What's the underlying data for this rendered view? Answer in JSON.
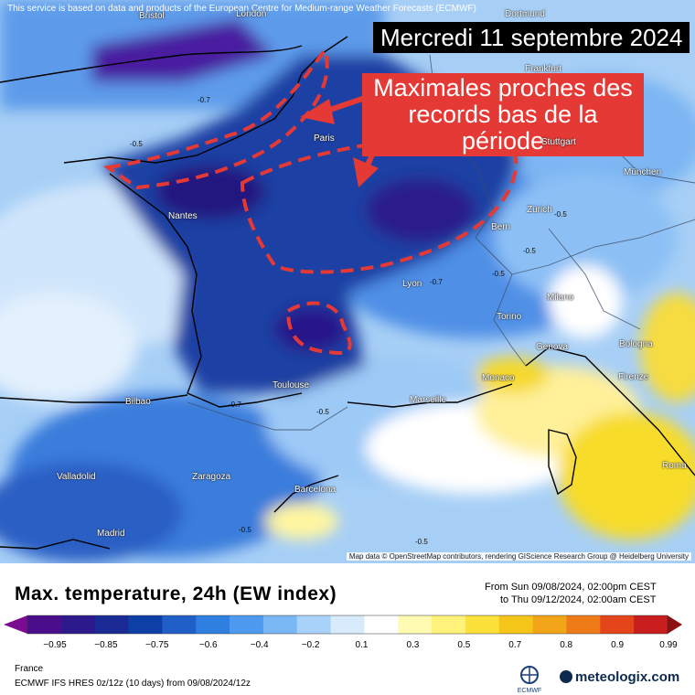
{
  "header_note": "This service is based on data and products of the European Centre for Medium-range Weather Forecasts (ECMWF)",
  "date_label": "Mercredi 11 septembre 2024",
  "annotation": "Maximales proches des records bas de la période",
  "attribution": "Map data © OpenStreetMap contributors, rendering GIScience Research Group @ Heidelberg University",
  "cities": [
    {
      "name": "Bristol"
    },
    {
      "name": "London"
    },
    {
      "name": "Dortmund"
    },
    {
      "name": "Frankfurt"
    },
    {
      "name": "Paris"
    },
    {
      "name": "Stuttgart"
    },
    {
      "name": "München"
    },
    {
      "name": "Nantes"
    },
    {
      "name": "Zürich"
    },
    {
      "name": "Bern"
    },
    {
      "name": "Lyon"
    },
    {
      "name": "Milano"
    },
    {
      "name": "Torino"
    },
    {
      "name": "Genova"
    },
    {
      "name": "Bologna"
    },
    {
      "name": "Monaco"
    },
    {
      "name": "Firenze"
    },
    {
      "name": "Toulouse"
    },
    {
      "name": "Marseille"
    },
    {
      "name": "Bilbao"
    },
    {
      "name": "Valladolid"
    },
    {
      "name": "Zaragoza"
    },
    {
      "name": "Barcelona"
    },
    {
      "name": "Roma"
    },
    {
      "name": "Madrid"
    }
  ],
  "contour_labels": [
    "-0.7",
    "-0.5",
    "-0.5",
    "-0.7",
    "-0.7",
    "-0.5",
    "-0.5",
    "-0.5",
    "-0.5",
    "-0.5"
  ],
  "legend": {
    "title": "Max. temperature, 24h (EW index)",
    "period_from": "From Sun 09/08/2024, 02:00pm CEST",
    "period_to": "to Thu 09/12/2024, 02:00am CEST",
    "ticks": [
      "−0.95",
      "−0.85",
      "−0.75",
      "−0.6",
      "−0.4",
      "−0.2",
      "0.1",
      "0.3",
      "0.5",
      "0.7",
      "0.8",
      "0.9",
      "0.99"
    ],
    "colors": [
      "#7b0c8f",
      "#4a0e8a",
      "#2c1a8c",
      "#1a2a94",
      "#0d3fa6",
      "#1f5fc7",
      "#2f7fe0",
      "#4d9af0",
      "#7ab7f5",
      "#a9d2fa",
      "#d8ebfd",
      "#ffffff",
      "#fffbb3",
      "#fff27a",
      "#fbe13a",
      "#f6c51a",
      "#f3a51a",
      "#ef7a18",
      "#e5451a",
      "#c81e1e",
      "#8c1010"
    ]
  },
  "region": "France",
  "model": "ECMWF IFS HRES 0z/12z (10 days) from 09/08/2024/12z",
  "logo_ecmwf": "ECMWF",
  "logo_meteologix": "meteologix.com"
}
